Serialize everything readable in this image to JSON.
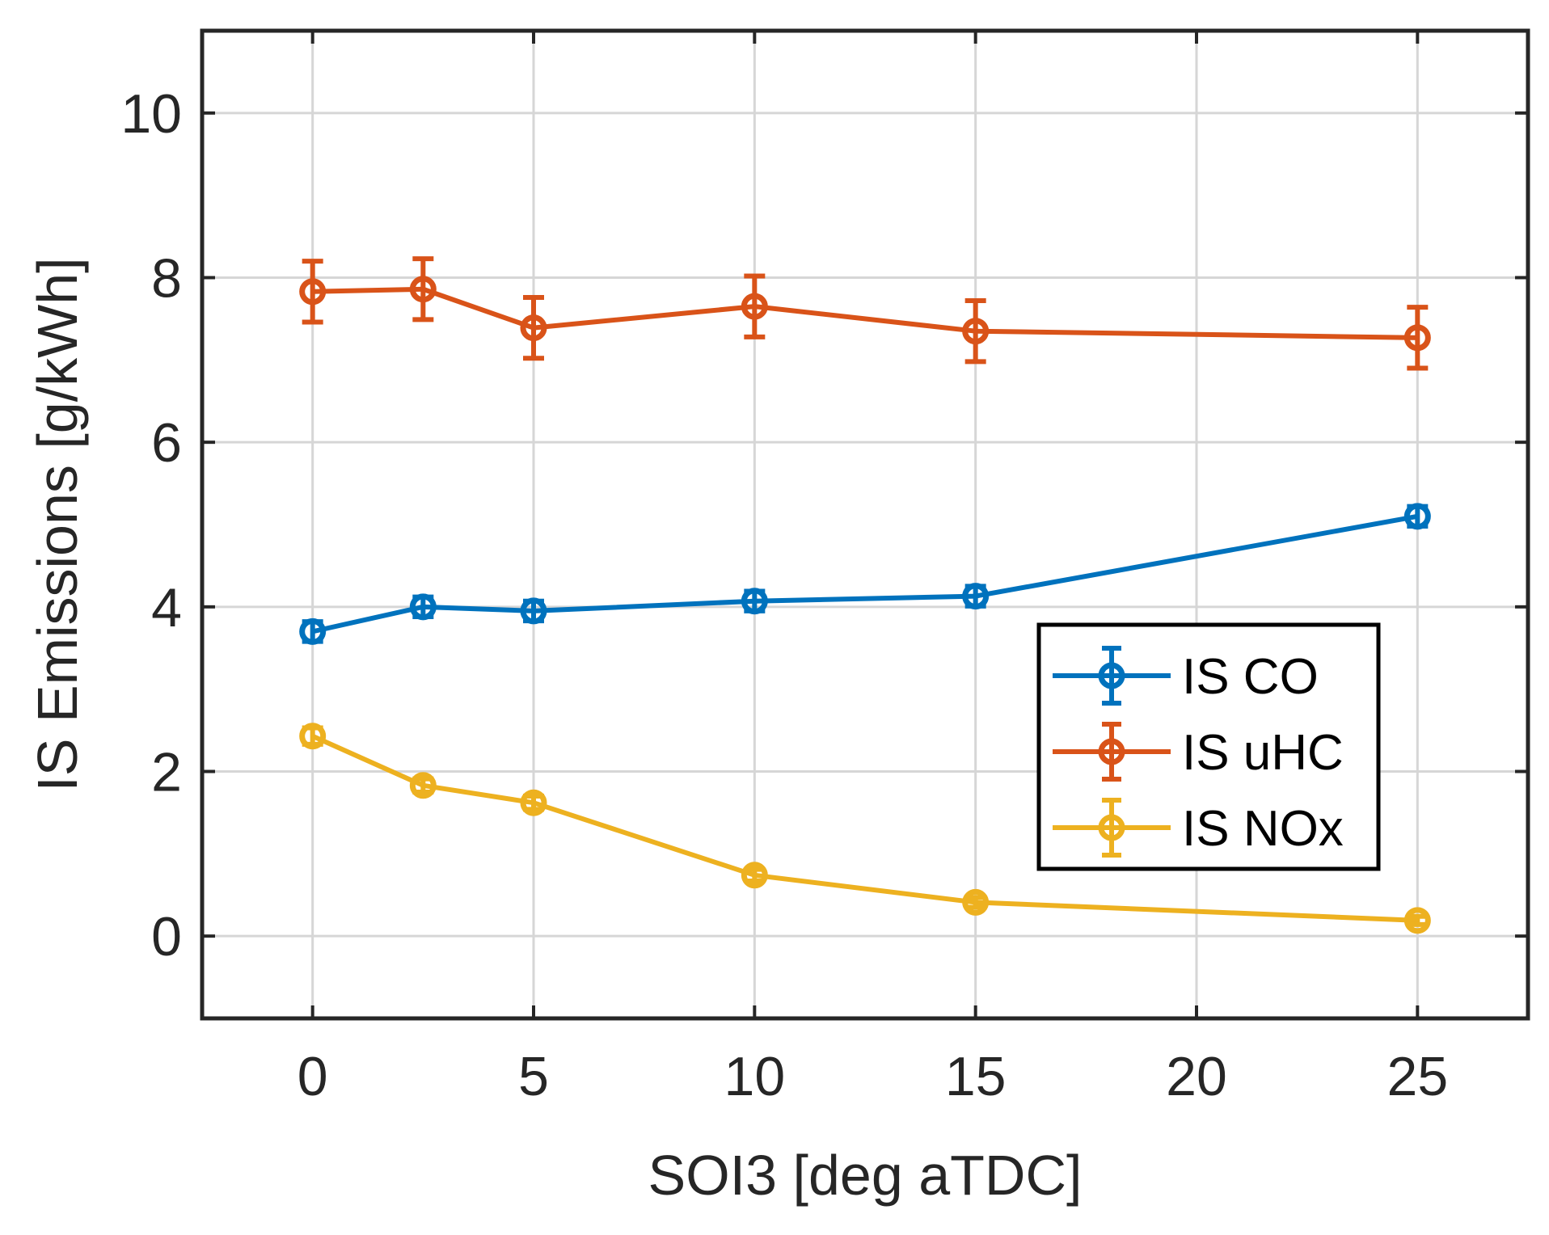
{
  "chart_data": {
    "type": "line",
    "xlabel": "SOI3 [deg aTDC]",
    "ylabel": "IS Emissions [g/kWh]",
    "xlim": [
      -2.5,
      27.5
    ],
    "ylim": [
      -1,
      11
    ],
    "xticks": [
      0,
      5,
      10,
      15,
      20,
      25
    ],
    "yticks": [
      0,
      2,
      4,
      6,
      8,
      10
    ],
    "grid": true,
    "legend_position": "right",
    "x": [
      0,
      2.5,
      5,
      10,
      15,
      25
    ],
    "series": [
      {
        "name": "IS CO",
        "color": "#0072BD",
        "values": [
          3.7,
          4.0,
          3.95,
          4.07,
          4.13,
          5.1
        ],
        "errors": [
          0.12,
          0.12,
          0.12,
          0.12,
          0.12,
          0.12
        ]
      },
      {
        "name": "IS uHC",
        "color": "#D95319",
        "values": [
          7.83,
          7.86,
          7.39,
          7.65,
          7.35,
          7.27
        ],
        "errors": [
          0.37,
          0.37,
          0.37,
          0.37,
          0.37,
          0.37
        ]
      },
      {
        "name": "IS NOx",
        "color": "#EDB120",
        "values": [
          2.43,
          1.83,
          1.62,
          0.74,
          0.41,
          0.19
        ],
        "errors": [
          0.1,
          0.08,
          0.08,
          0.07,
          0.06,
          0.05
        ]
      }
    ]
  }
}
